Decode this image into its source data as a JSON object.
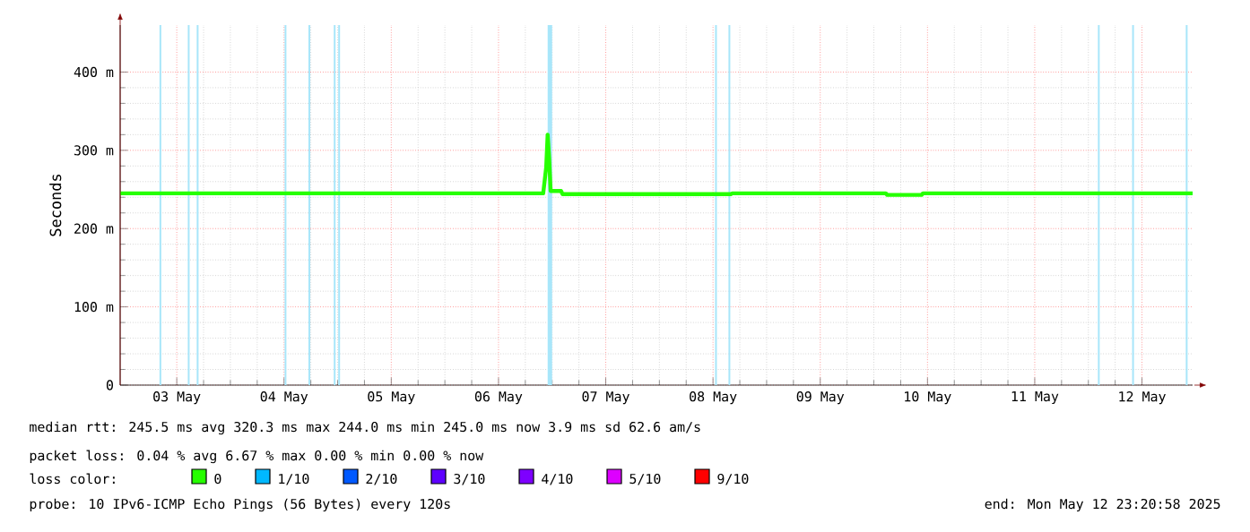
{
  "chart_data": {
    "type": "line",
    "ylabel": "Seconds",
    "x": [
      "2025-05-02T23:20",
      "2025-05-06T22:00",
      "2025-05-06T22:40",
      "2025-05-06T23:00",
      "2025-05-06T23:20",
      "2025-05-06T23:40",
      "2025-05-07T02:00",
      "2025-05-07T02:20",
      "2025-05-08T16:00",
      "2025-05-08T16:20",
      "2025-05-10T02:40",
      "2025-05-10T03:00",
      "2025-05-10T10:40",
      "2025-05-10T11:00",
      "2025-05-12T23:20"
    ],
    "series": [
      {
        "name": "0",
        "color": "#26ff00",
        "values": [
          245,
          245,
          278,
          320,
          290,
          248,
          248,
          244,
          244,
          245,
          245,
          243,
          243,
          245,
          245
        ]
      },
      {
        "name": "1/10",
        "color": "#00b8ff",
        "values": [
          null,
          null,
          null,
          null,
          null,
          null,
          null,
          null,
          null,
          null,
          null,
          null,
          null,
          null,
          null
        ]
      },
      {
        "name": "2/10",
        "color": "#0059ff",
        "values": [
          null,
          null,
          null,
          null,
          null,
          null,
          null,
          null,
          null,
          null,
          null,
          null,
          null,
          null,
          null
        ]
      },
      {
        "name": "3/10",
        "color": "#5e00ff",
        "values": [
          null,
          null,
          null,
          null,
          null,
          null,
          null,
          null,
          null,
          null,
          null,
          null,
          null,
          null,
          null
        ]
      },
      {
        "name": "4/10",
        "color": "#7e00ff",
        "values": [
          null,
          null,
          null,
          null,
          null,
          null,
          null,
          null,
          null,
          null,
          null,
          null,
          null,
          null,
          null
        ]
      },
      {
        "name": "5/10",
        "color": "#dd00ff",
        "values": [
          null,
          null,
          null,
          null,
          null,
          null,
          null,
          null,
          null,
          null,
          null,
          null,
          null,
          null,
          null
        ]
      },
      {
        "name": "9/10",
        "color": "#ff0000",
        "values": [
          null,
          null,
          null,
          null,
          null,
          null,
          null,
          null,
          null,
          null,
          null,
          null,
          null,
          null,
          null
        ]
      }
    ],
    "legend_title": "loss color:",
    "legend": "bottom",
    "xlim": [
      "2025-05-02T23:20",
      "2025-05-12T23:20"
    ],
    "xticks": [
      {
        "value": "2025-05-03T12:00",
        "label": "03 May"
      },
      {
        "value": "2025-05-04T12:00",
        "label": "04 May"
      },
      {
        "value": "2025-05-05T12:00",
        "label": "05 May"
      },
      {
        "value": "2025-05-06T12:00",
        "label": "06 May"
      },
      {
        "value": "2025-05-07T12:00",
        "label": "07 May"
      },
      {
        "value": "2025-05-08T12:00",
        "label": "08 May"
      },
      {
        "value": "2025-05-09T12:00",
        "label": "09 May"
      },
      {
        "value": "2025-05-10T12:00",
        "label": "10 May"
      },
      {
        "value": "2025-05-11T12:00",
        "label": "11 May"
      },
      {
        "value": "2025-05-12T12:00",
        "label": "12 May"
      }
    ],
    "ylim": [
      0,
      460
    ],
    "yticks": [
      0,
      {
        "value": 100,
        "label": "100 m"
      },
      {
        "value": 200,
        "label": "200 m"
      },
      {
        "value": 300,
        "label": "300 m"
      },
      {
        "value": 400,
        "label": "400 m"
      }
    ],
    "grid": true,
    "line_style": "solid",
    "ref_lines": [
      {
        "axis": "x",
        "value": "2025-05-03T08:20",
        "color": "#a8e6fa"
      },
      {
        "axis": "x",
        "value": "2025-05-03T14:40",
        "color": "#a8e6fa"
      },
      {
        "axis": "x",
        "value": "2025-05-03T16:40",
        "color": "#a8e6fa"
      },
      {
        "axis": "x",
        "value": "2025-05-04T12:20",
        "color": "#a8e6fa"
      },
      {
        "axis": "x",
        "value": "2025-05-04T17:40",
        "color": "#a8e6fa"
      },
      {
        "axis": "x",
        "value": "2025-05-04T23:20",
        "color": "#a8e6fa"
      },
      {
        "axis": "x",
        "value": "2025-05-05T00:20",
        "color": "#a8e6fa"
      },
      {
        "axis": "x",
        "value": "2025-05-08T12:40",
        "color": "#a8e6fa"
      },
      {
        "axis": "x",
        "value": "2025-05-08T15:40",
        "color": "#a8e6fa"
      },
      {
        "axis": "x",
        "value": "2025-05-12T02:20",
        "color": "#a8e6fa"
      },
      {
        "axis": "x",
        "value": "2025-05-12T10:00",
        "color": "#a8e6fa"
      },
      {
        "axis": "x",
        "value": "2025-05-12T22:00",
        "color": "#a8e6fa"
      }
    ],
    "bands": [
      {
        "axis": "x",
        "from": "2025-05-06T23:00",
        "to": "2025-05-07T00:00",
        "color": "#a8e6fa"
      }
    ],
    "annotations": [
      "median rtt:  245.5 ms avg  320.3 ms max  244.0 ms min  245.0 ms now  3.9 ms sd  62.6   am/s",
      "packet loss: 0.04 % avg  6.67 % max  0.00 % min  0.00 % now",
      "probe:       10 IPv6-ICMP Echo Pings (56 Bytes) every 120s",
      "end: Mon May 12 23:20:58 2025"
    ]
  }
}
